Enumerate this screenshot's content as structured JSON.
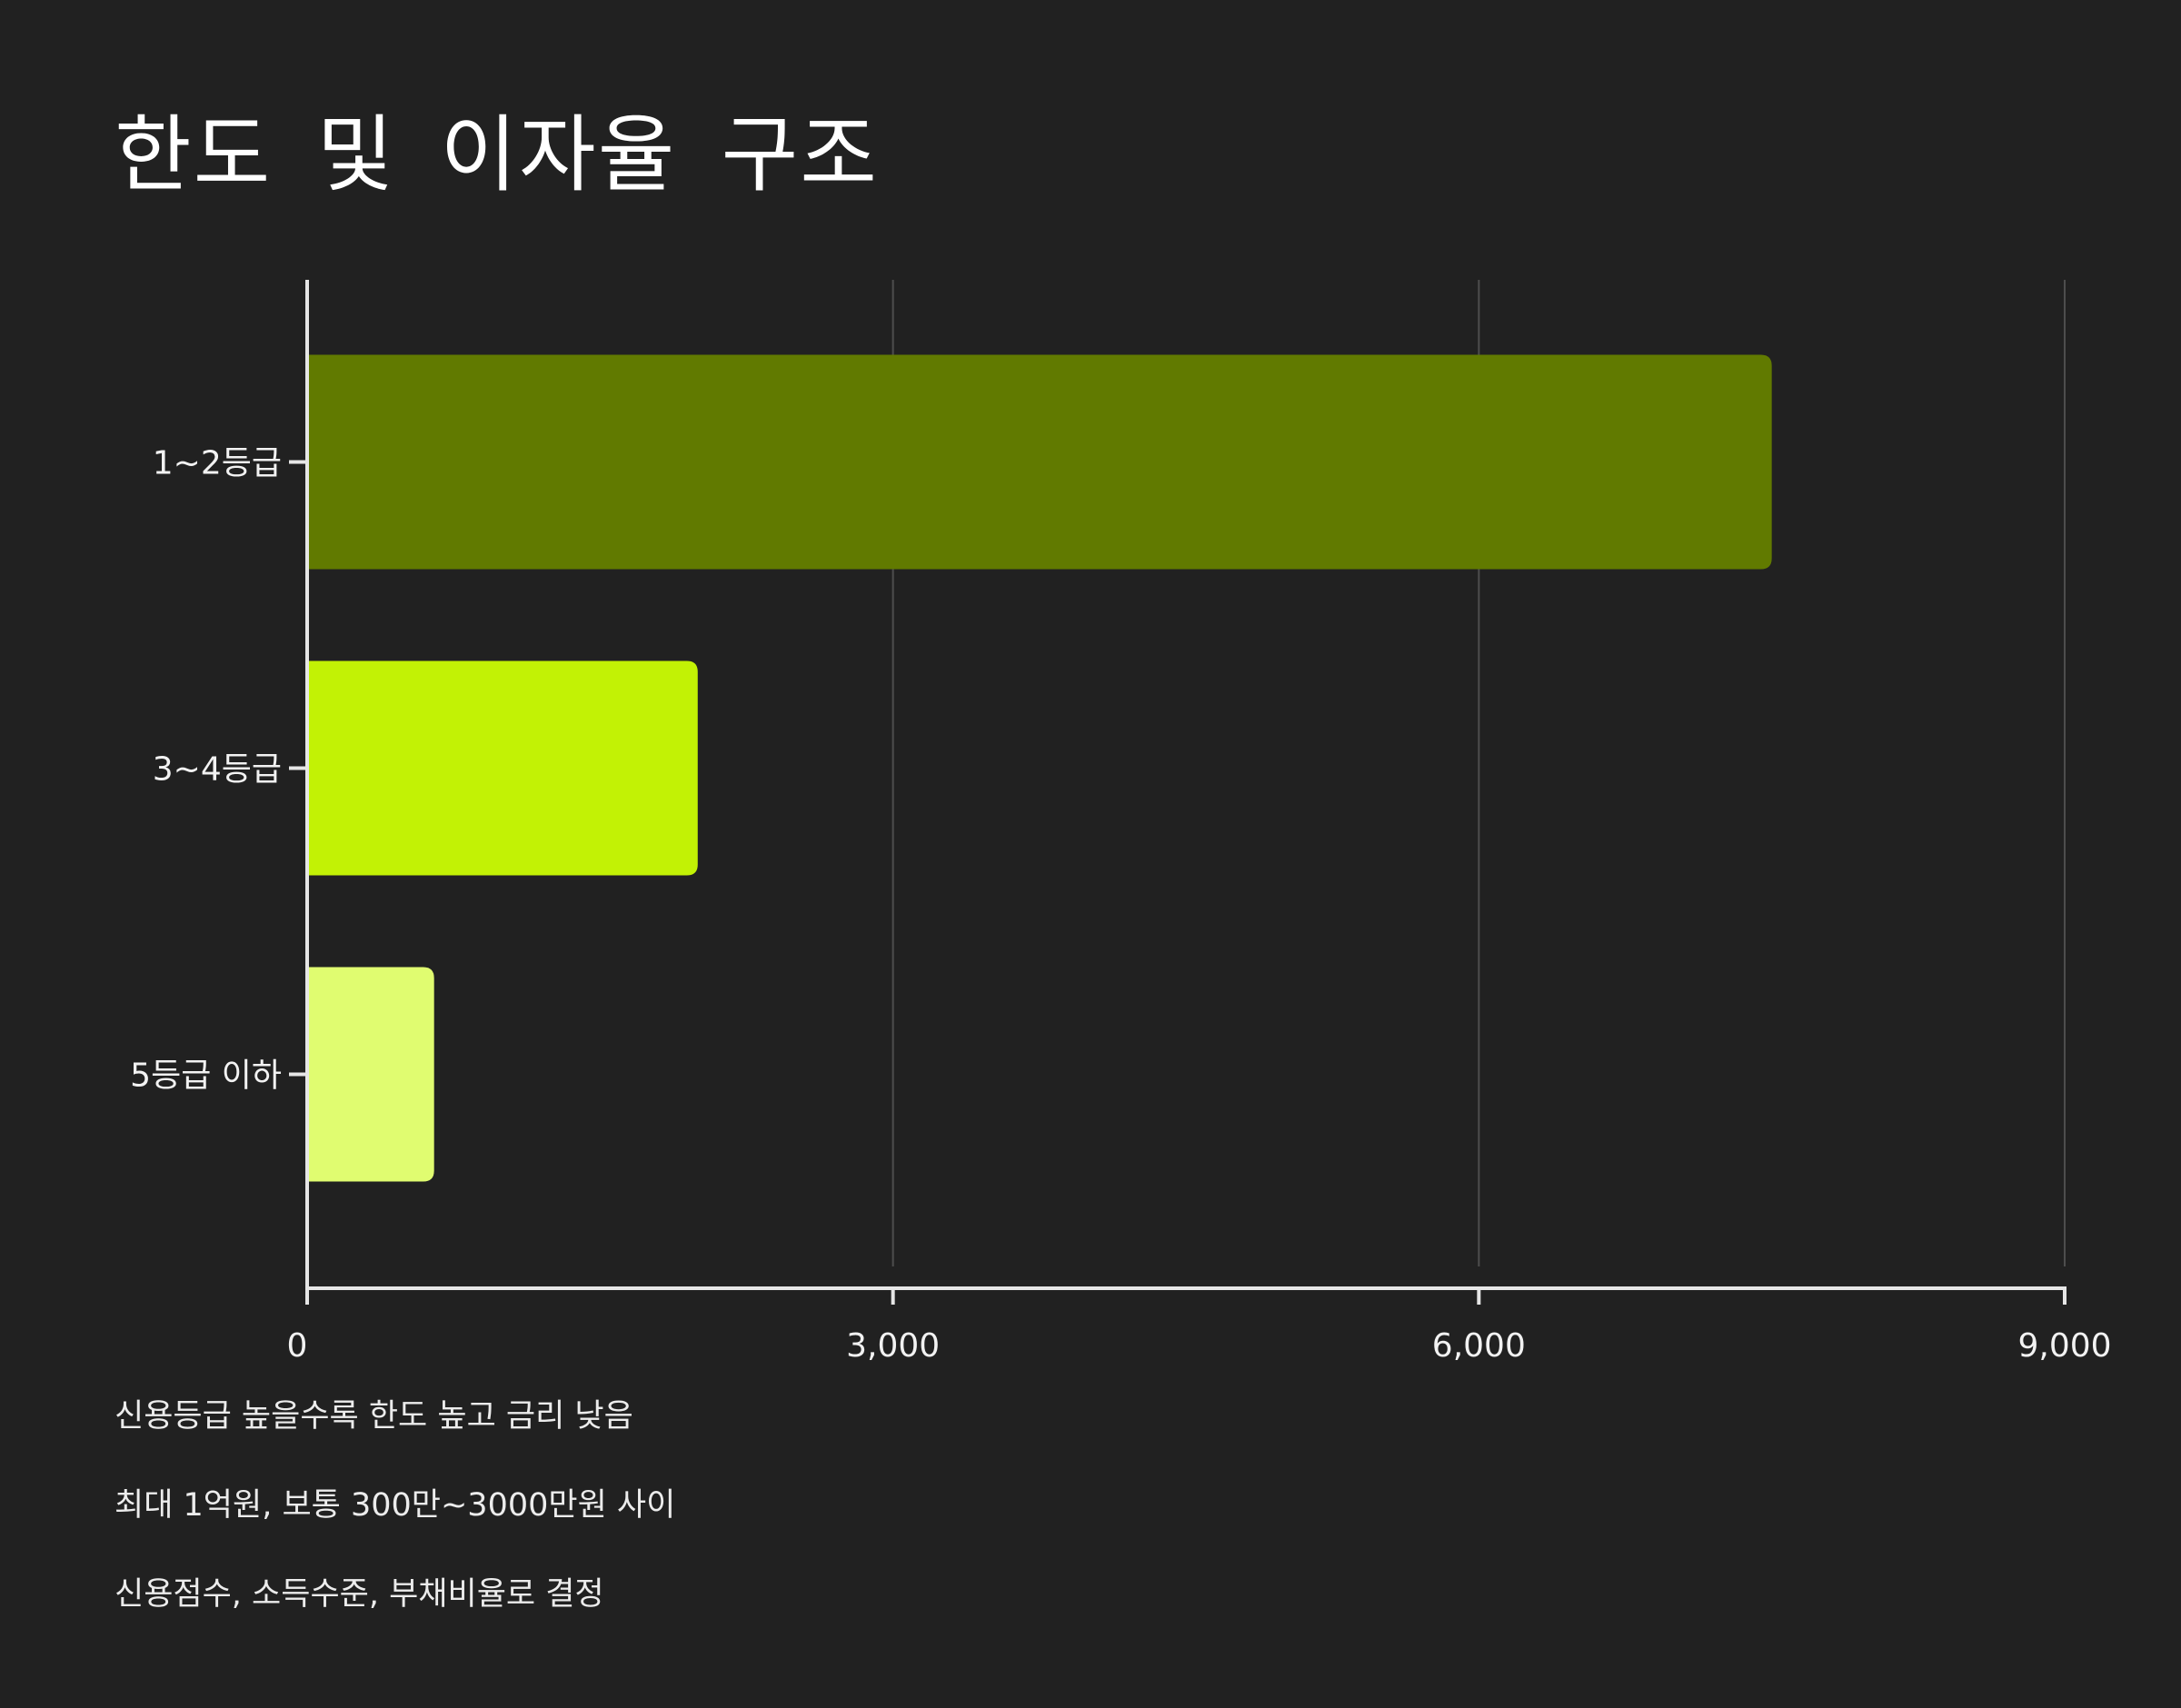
{
  "chart_data": {
    "type": "bar",
    "orientation": "horizontal",
    "title": "한도 및 이자율 구조",
    "categories": [
      "1~2등급",
      "3~4등급",
      "5등급 이하"
    ],
    "values": [
      7500,
      2000,
      650
    ],
    "xlim": [
      0,
      9000
    ],
    "x_ticks": [
      0,
      3000,
      6000,
      9000
    ],
    "x_tick_labels": [
      "0",
      "3,000",
      "6,000",
      "9,000"
    ],
    "xlabel": "",
    "ylabel": "",
    "grid": "vertical",
    "legend": "none",
    "colors": [
      "#617a00",
      "#c2f205",
      "#e0fc70"
    ]
  },
  "notes": [
    "신용등급 높을수록 한도 높고 금리 낮음",
    "최대 1억원, 보통 300만~3000만원 사이",
    "신용점수, 소득수준, 부채비율로 결정"
  ],
  "theme": {
    "background": "#212121",
    "axis_color": "#e6e6e6",
    "grid_color": "#4d4d4d",
    "text_color": "#f2f2f2"
  }
}
